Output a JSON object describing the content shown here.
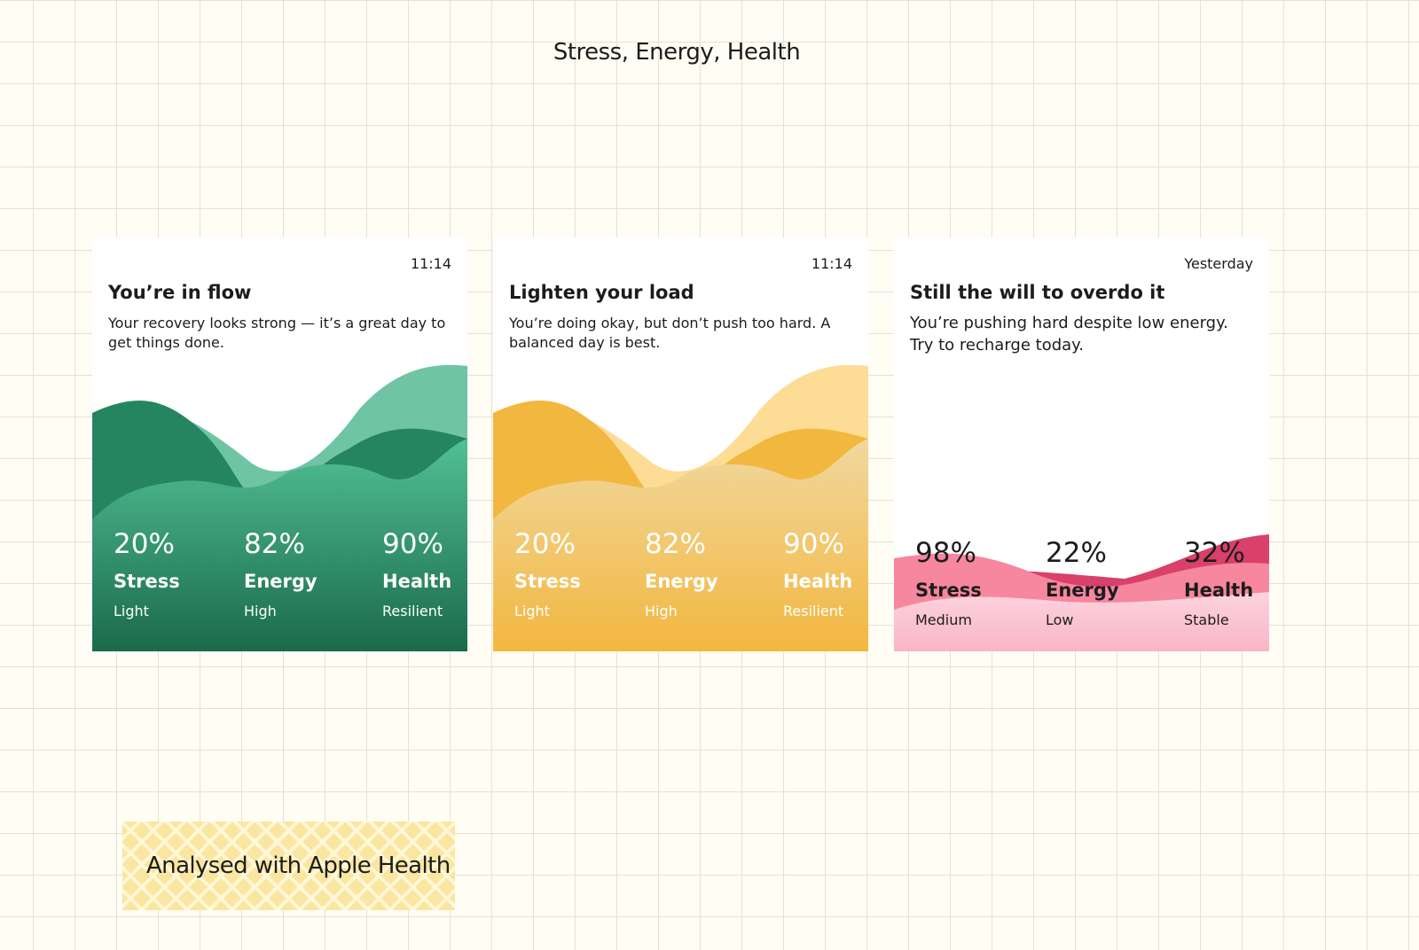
{
  "header": {
    "title": "Stress, Energy, Health"
  },
  "cards": [
    {
      "time": "11:14",
      "heading": "You’re in flow",
      "description": "Your recovery looks strong — it’s a great day to get things done.",
      "metrics": [
        {
          "value": "20%",
          "label": "Stress",
          "level": "Light"
        },
        {
          "value": "82%",
          "label": "Energy",
          "level": "High"
        },
        {
          "value": "90%",
          "label": "Health",
          "level": "Resilient"
        }
      ]
    },
    {
      "time": "11:14",
      "heading": "Lighten your load",
      "description": "You’re doing okay, but don’t push too hard. A balanced day is best.",
      "metrics": [
        {
          "value": "20%",
          "label": "Stress",
          "level": "Light"
        },
        {
          "value": "82%",
          "label": "Energy",
          "level": "High"
        },
        {
          "value": "90%",
          "label": "Health",
          "level": "Resilient"
        }
      ]
    },
    {
      "time": "Yesterday",
      "heading": "Still the will to overdo it",
      "description": "You’re pushing hard despite low energy. Try to recharge today.",
      "metrics": [
        {
          "value": "98%",
          "label": "Stress",
          "level": "Medium"
        },
        {
          "value": "22%",
          "label": "Energy",
          "level": "Low"
        },
        {
          "value": "32%",
          "label": "Health",
          "level": "Stable"
        }
      ]
    }
  ],
  "footer": {
    "tag": "Analysed with Apple Health"
  }
}
